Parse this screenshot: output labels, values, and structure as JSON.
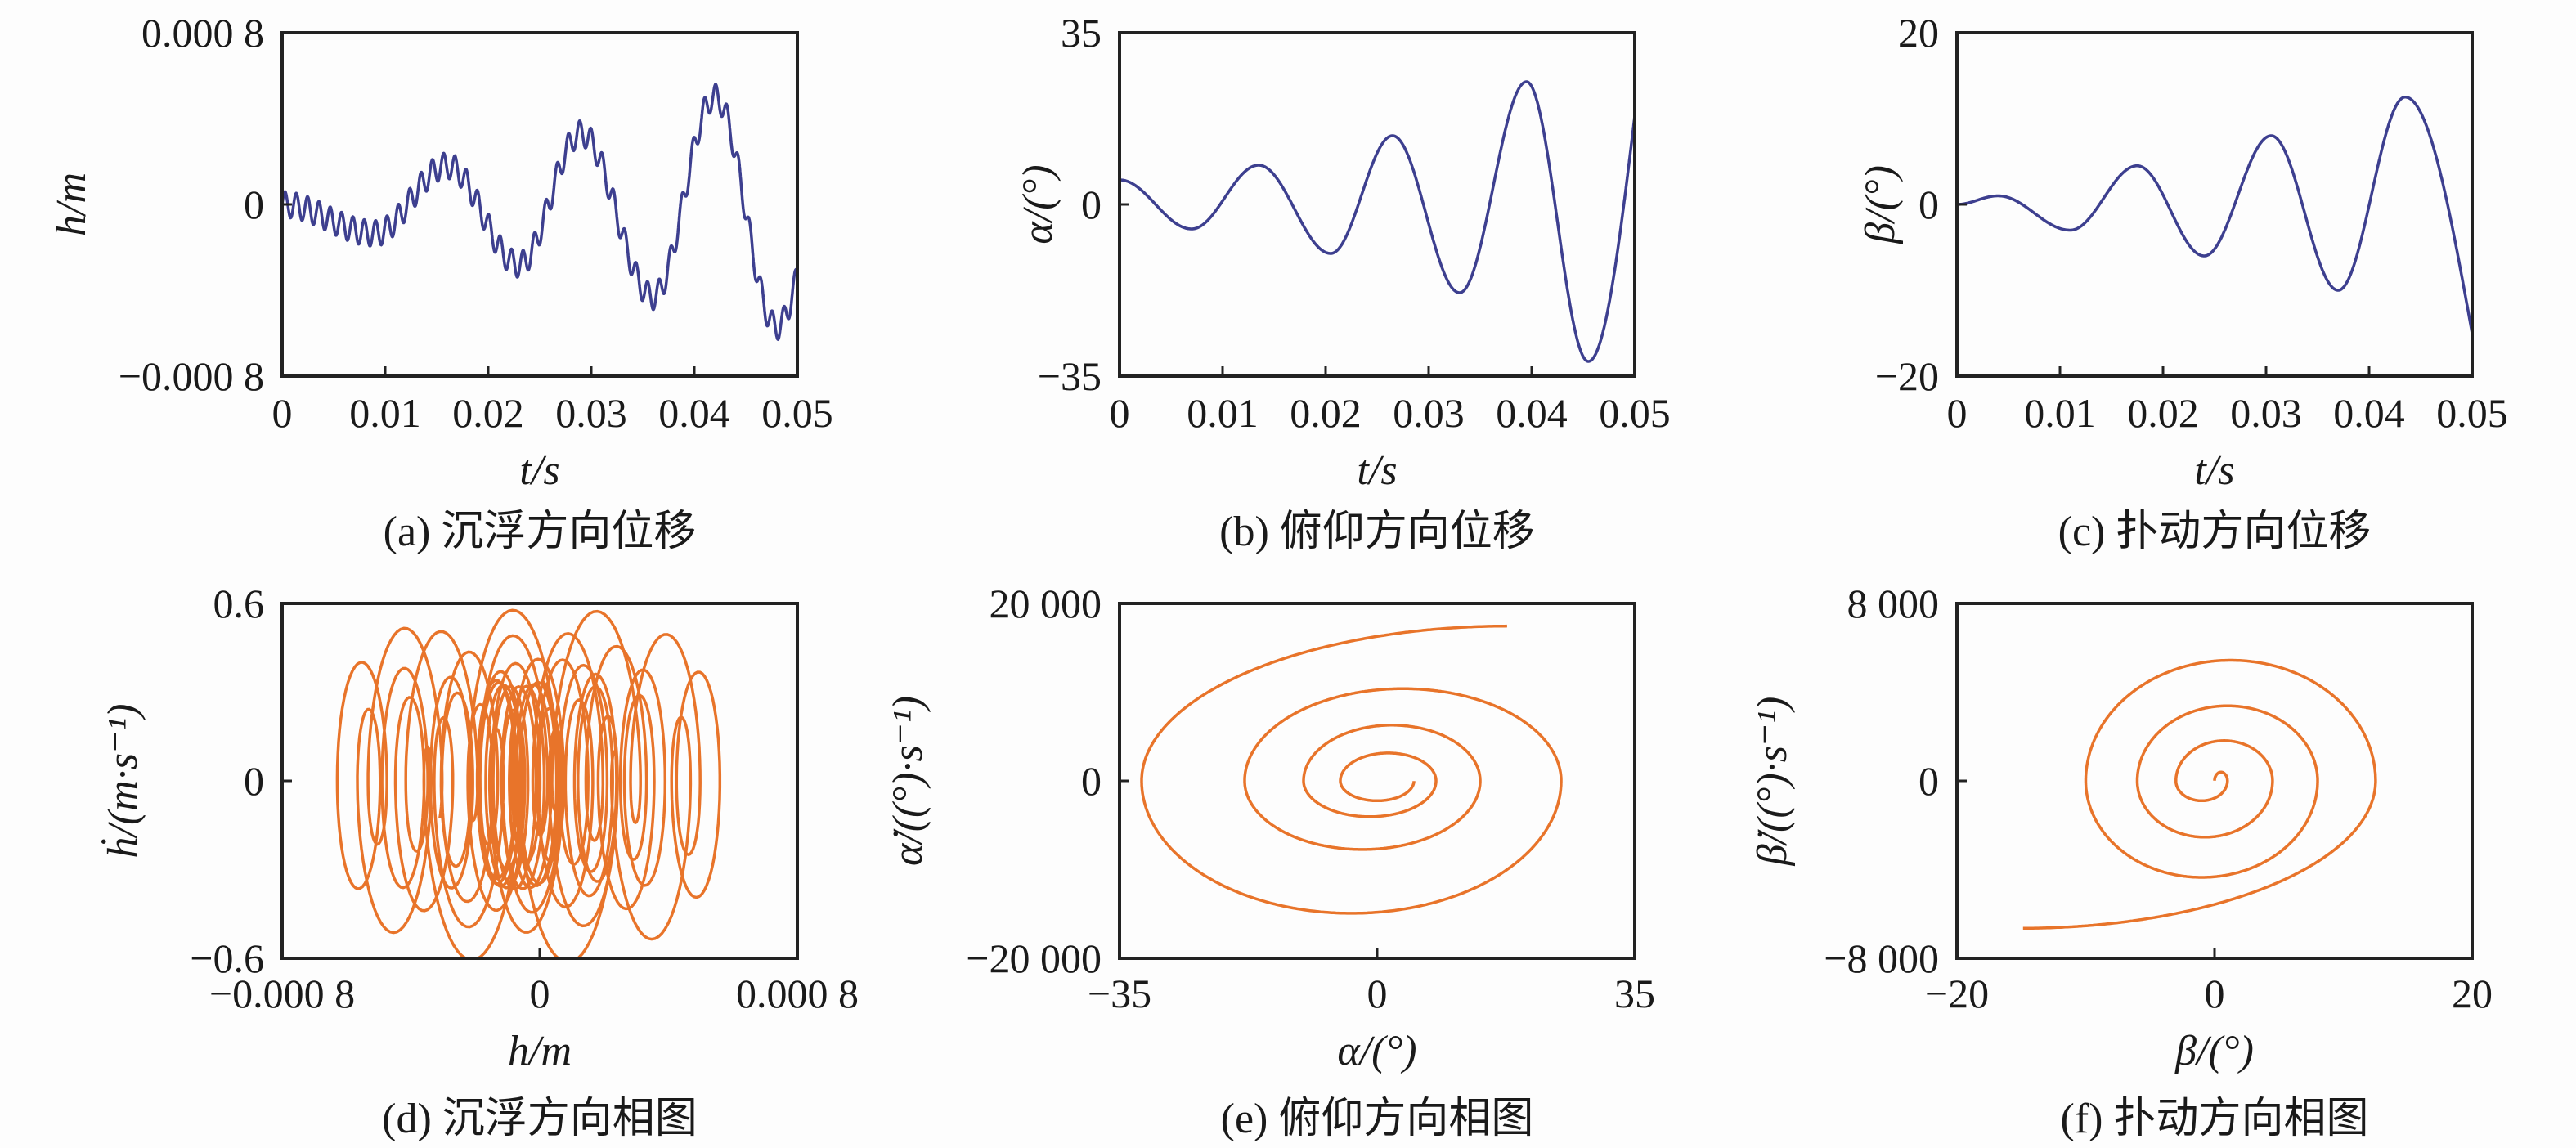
{
  "chart_data": [
    {
      "id": "a",
      "type": "line",
      "caption": "(a) 沉浮方向位移",
      "xlabel": "t/s",
      "ylabel": "h/m",
      "xlim": [
        0,
        0.05
      ],
      "ylim": [
        -0.0008,
        0.0008
      ],
      "xticks": [
        0,
        0.01,
        0.02,
        0.03,
        0.04,
        0.05
      ],
      "xtick_labels": [
        "0",
        "0.01",
        "0.02",
        "0.03",
        "0.04",
        "0.05"
      ],
      "yticks": [
        -0.0008,
        0,
        0.0008
      ],
      "ytick_labels": [
        "−0.000 8",
        "0",
        "0.000 8"
      ],
      "color": "#3d3f8f",
      "series": [
        {
          "extrema_t": [
            0,
            0.009,
            0.016,
            0.023,
            0.029,
            0.036,
            0.042,
            0.048,
            0.05
          ],
          "extrema_v": [
            0,
            -0.000135,
            0.00018,
            -0.00028,
            0.00033,
            -0.00043,
            0.0005,
            -0.00057,
            -0.00033
          ],
          "ripple": {
            "period_s": 0.0011,
            "amplitude_m": 6e-05
          }
        }
      ]
    },
    {
      "id": "b",
      "type": "line",
      "caption": "(b) 俯仰方向位移",
      "xlabel": "t/s",
      "ylabel": "α/(°)",
      "xlim": [
        0,
        0.05
      ],
      "ylim": [
        -35,
        35
      ],
      "xticks": [
        0,
        0.01,
        0.02,
        0.03,
        0.04,
        0.05
      ],
      "xtick_labels": [
        "0",
        "0.01",
        "0.02",
        "0.03",
        "0.04",
        "0.05"
      ],
      "yticks": [
        -35,
        0,
        35
      ],
      "ytick_labels": [
        "−35",
        "0",
        "35"
      ],
      "color": "#3d3f8f",
      "series": [
        {
          "extrema_t": [
            0,
            0.007,
            0.0135,
            0.0205,
            0.0265,
            0.033,
            0.0395,
            0.0455,
            0.05
          ],
          "extrema_v": [
            5,
            -5,
            8,
            -10,
            14,
            -18,
            25,
            -32,
            18
          ]
        }
      ]
    },
    {
      "id": "c",
      "type": "line",
      "caption": "(c) 扑动方向位移",
      "xlabel": "t/s",
      "ylabel": "β/(°)",
      "xlim": [
        0,
        0.05
      ],
      "ylim": [
        -20,
        20
      ],
      "xticks": [
        0,
        0.01,
        0.02,
        0.03,
        0.04,
        0.05
      ],
      "xtick_labels": [
        "0",
        "0.01",
        "0.02",
        "0.03",
        "0.04",
        "0.05"
      ],
      "yticks": [
        -20,
        0,
        20
      ],
      "ytick_labels": [
        "−20",
        "0",
        "20"
      ],
      "color": "#3d3f8f",
      "series": [
        {
          "extrema_t": [
            0,
            0.004,
            0.011,
            0.0175,
            0.024,
            0.0305,
            0.037,
            0.0435,
            0.05
          ],
          "extrema_v": [
            0,
            1,
            -3,
            4.5,
            -6,
            8,
            -10,
            12.5,
            -15
          ]
        }
      ]
    },
    {
      "id": "d",
      "type": "line",
      "phase_of": "a",
      "caption": "(d) 沉浮方向相图",
      "xlabel": "h/m",
      "ylabel": "ḣ/(m·s⁻¹)",
      "xlim": [
        -0.0008,
        0.0008
      ],
      "ylim": [
        -0.6,
        0.6
      ],
      "xticks": [
        -0.0008,
        0,
        0.0008
      ],
      "xtick_labels": [
        "−0.000 8",
        "0",
        "0.000 8"
      ],
      "yticks": [
        -0.6,
        0,
        0.6
      ],
      "ytick_labels": [
        "−0.6",
        "0",
        "0.6"
      ],
      "color": "#e8742a"
    },
    {
      "id": "e",
      "type": "line",
      "phase_of": "b",
      "caption": "(e) 俯仰方向相图",
      "xlabel": "α/(°)",
      "ylabel": "α̇/((°)·s⁻¹)",
      "xlim": [
        -35,
        35
      ],
      "ylim": [
        -20000,
        20000
      ],
      "xticks": [
        -35,
        0,
        35
      ],
      "xtick_labels": [
        "−35",
        "0",
        "35"
      ],
      "yticks": [
        -20000,
        0,
        20000
      ],
      "ytick_labels": [
        "−20 000",
        "0",
        "20 000"
      ],
      "color": "#e8742a"
    },
    {
      "id": "f",
      "type": "line",
      "phase_of": "c",
      "caption": "(f) 扑动方向相图",
      "xlabel": "β/(°)",
      "ylabel": "β̇/((°)·s⁻¹)",
      "xlim": [
        -20,
        20
      ],
      "ylim": [
        -8000,
        8000
      ],
      "xticks": [
        -20,
        0,
        20
      ],
      "xtick_labels": [
        "−20",
        "0",
        "20"
      ],
      "yticks": [
        -8000,
        0,
        8000
      ],
      "ytick_labels": [
        "−8 000",
        "0",
        "8 000"
      ],
      "color": "#e8742a"
    }
  ]
}
